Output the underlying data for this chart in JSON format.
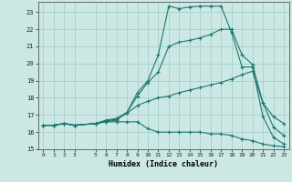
{
  "xlabel": "Humidex (Indice chaleur)",
  "background_color": "#cce8e4",
  "grid_color": "#a8d0cc",
  "line_color": "#1a7870",
  "xlim": [
    -0.5,
    23.5
  ],
  "ylim": [
    15,
    23.6
  ],
  "yticks": [
    15,
    16,
    17,
    18,
    19,
    20,
    21,
    22,
    23
  ],
  "xticks": [
    0,
    1,
    2,
    3,
    5,
    6,
    7,
    8,
    9,
    10,
    11,
    12,
    13,
    14,
    15,
    16,
    17,
    18,
    19,
    20,
    21,
    22,
    23
  ],
  "line1_x": [
    0,
    1,
    2,
    3,
    5,
    6,
    7,
    8,
    9,
    10,
    11,
    12,
    13,
    14,
    15,
    16,
    17,
    18,
    19,
    20,
    21,
    22,
    23
  ],
  "line1_y": [
    16.4,
    16.4,
    16.5,
    16.4,
    16.5,
    16.6,
    16.7,
    17.15,
    18.3,
    19.0,
    20.5,
    23.35,
    23.2,
    23.3,
    23.35,
    23.35,
    23.35,
    21.8,
    19.8,
    19.8,
    16.9,
    15.7,
    15.3
  ],
  "line2_x": [
    0,
    1,
    2,
    3,
    5,
    6,
    7,
    8,
    9,
    10,
    11,
    12,
    13,
    14,
    15,
    16,
    17,
    18,
    19,
    20,
    21,
    22,
    23
  ],
  "line2_y": [
    16.4,
    16.4,
    16.5,
    16.4,
    16.5,
    16.6,
    16.6,
    16.6,
    16.6,
    16.2,
    16.0,
    16.0,
    16.0,
    16.0,
    16.0,
    15.9,
    15.9,
    15.8,
    15.6,
    15.5,
    15.3,
    15.2,
    15.15
  ],
  "line3_x": [
    0,
    1,
    2,
    3,
    5,
    6,
    7,
    8,
    9,
    10,
    11,
    12,
    13,
    14,
    15,
    16,
    17,
    18,
    19,
    20,
    21,
    22,
    23
  ],
  "line3_y": [
    16.4,
    16.4,
    16.5,
    16.4,
    16.5,
    16.65,
    16.75,
    17.1,
    17.55,
    17.8,
    18.0,
    18.1,
    18.3,
    18.45,
    18.6,
    18.75,
    18.9,
    19.1,
    19.35,
    19.55,
    17.7,
    16.9,
    16.5
  ],
  "line4_x": [
    0,
    1,
    2,
    3,
    5,
    6,
    7,
    8,
    9,
    10,
    11,
    12,
    13,
    14,
    15,
    16,
    17,
    18,
    19,
    20,
    21,
    22,
    23
  ],
  "line4_y": [
    16.4,
    16.4,
    16.5,
    16.4,
    16.5,
    16.7,
    16.8,
    17.15,
    18.1,
    18.9,
    19.5,
    21.0,
    21.25,
    21.35,
    21.5,
    21.7,
    22.0,
    22.0,
    20.5,
    19.95,
    17.7,
    16.3,
    15.8
  ]
}
